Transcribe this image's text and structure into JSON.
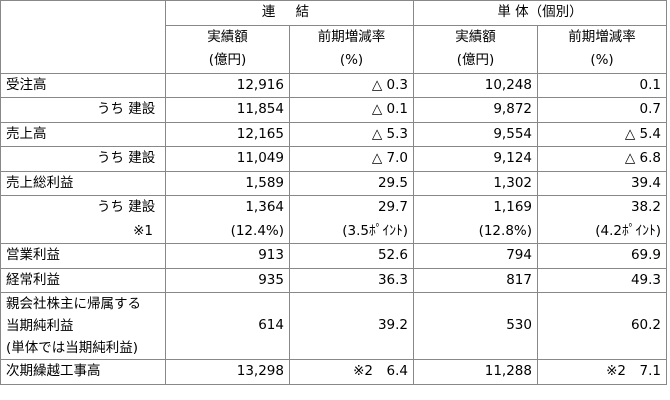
{
  "header": {
    "group_consolidated": "連 結",
    "group_standalone": "単 体（個別）",
    "col_result_line1": "実績額",
    "col_result_line2": "(億円)",
    "col_change_line1": "前期増減率",
    "col_change_line2": "(%)"
  },
  "rows": [
    {
      "label": "受注高",
      "c_val": "12,916",
      "c_pct": "△ 0.3",
      "s_val": "10,248",
      "s_pct": "0.1"
    },
    {
      "label": "うち 建設",
      "c_val": "11,854",
      "c_pct": "△ 0.1",
      "s_val": "9,872",
      "s_pct": "0.7"
    },
    {
      "label": "売上高",
      "c_val": "12,165",
      "c_pct": "△ 5.3",
      "s_val": "9,554",
      "s_pct": "△ 5.4"
    },
    {
      "label": "うち 建設",
      "c_val": "11,049",
      "c_pct": "△ 7.0",
      "s_val": "9,124",
      "s_pct": "△ 6.8"
    },
    {
      "label": "売上総利益",
      "c_val": "1,589",
      "c_pct": "29.5",
      "s_val": "1,302",
      "s_pct": "39.4"
    },
    {
      "label": "うち 建設",
      "c_val": "1,364",
      "c_pct": "29.7",
      "s_val": "1,169",
      "s_pct": "38.2"
    },
    {
      "label": "※1",
      "c_val": "(12.4%)",
      "c_pct": "(3.5ﾎﾟｲﾝﾄ)",
      "s_val": "(12.8%)",
      "s_pct": "(4.2ﾎﾟｲﾝﾄ)"
    },
    {
      "label": "営業利益",
      "c_val": "913",
      "c_pct": "52.6",
      "s_val": "794",
      "s_pct": "69.9"
    },
    {
      "label": "経常利益",
      "c_val": "935",
      "c_pct": "36.3",
      "s_val": "817",
      "s_pct": "49.3"
    },
    {
      "label_line1": "親会社株主に帰属する",
      "label_line2": "当期純利益",
      "label_line3": "(単体では当期純利益)",
      "c_val": "614",
      "c_pct": "39.2",
      "s_val": "530",
      "s_pct": "60.2"
    },
    {
      "label": "次期繰越工事高",
      "c_val": "13,298",
      "c_pct": "※2　6.4",
      "s_val": "11,288",
      "s_pct": "※2　7.1"
    }
  ]
}
